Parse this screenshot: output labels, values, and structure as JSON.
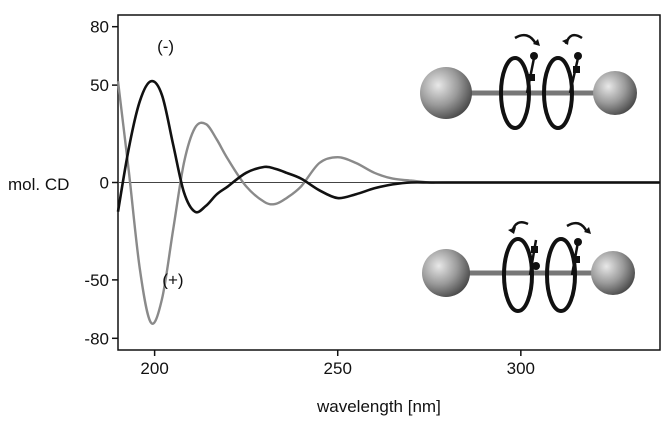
{
  "chart_data": {
    "type": "line",
    "title": "",
    "xlabel": "wavelength  [nm]",
    "ylabel": "mol. CD",
    "xlim": [
      190,
      338
    ],
    "ylim": [
      -86,
      86
    ],
    "x_ticks": [
      200,
      250,
      300
    ],
    "y_ticks": [
      80,
      50,
      0,
      -50,
      -80
    ],
    "grid": false,
    "legend": "none",
    "series": [
      {
        "name": "(-)",
        "color": "#111111",
        "x": [
          190,
          193,
          196,
          199,
          202,
          205,
          208,
          211,
          214,
          217,
          220,
          225,
          230,
          233,
          236,
          240,
          245,
          250,
          255,
          260,
          265,
          270,
          275,
          280,
          300,
          320,
          338
        ],
        "y": [
          -15,
          18,
          42,
          52,
          45,
          20,
          -5,
          -15,
          -12,
          -6,
          -2,
          5,
          8,
          7,
          5,
          2,
          -4,
          -8,
          -6,
          -3,
          -1,
          0,
          0,
          0,
          0,
          0,
          0
        ]
      },
      {
        "name": "(+)",
        "color": "#8a8a8a",
        "x": [
          190,
          193,
          196,
          199,
          202,
          205,
          208,
          211,
          214,
          217,
          220,
          225,
          230,
          233,
          236,
          240,
          245,
          250,
          255,
          260,
          265,
          270,
          275,
          280,
          300,
          320,
          338
        ],
        "y": [
          52,
          5,
          -45,
          -72,
          -60,
          -25,
          10,
          28,
          30,
          22,
          12,
          -2,
          -10,
          -11,
          -8,
          -2,
          10,
          13,
          10,
          5,
          2,
          1,
          0,
          0,
          0,
          0,
          0
        ]
      }
    ],
    "annotations": [
      {
        "text": "(-)",
        "x": 203,
        "y": 67
      },
      {
        "text": "(+)",
        "x": 205,
        "y": -53
      }
    ]
  },
  "illustrations": [
    {
      "name": "left-handed-dimer-illustration"
    },
    {
      "name": "right-handed-dimer-illustration"
    }
  ]
}
